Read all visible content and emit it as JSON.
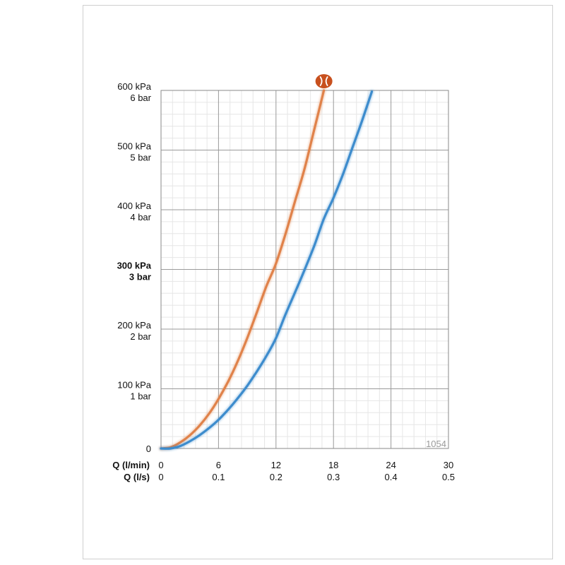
{
  "chart_data": {
    "type": "line",
    "code_label": "1054",
    "x_rows": [
      {
        "label": "Q (l/min)",
        "ticks": [
          "0",
          "6",
          "12",
          "18",
          "24",
          "30"
        ]
      },
      {
        "label": "Q (l/s)",
        "ticks": [
          "0",
          "0.1",
          "0.2",
          "0.3",
          "0.4",
          "0.5"
        ]
      }
    ],
    "y_ticks": [
      {
        "value": 0,
        "kpa": "0",
        "bar": "",
        "bold": false
      },
      {
        "value": 100,
        "kpa": "100 kPa",
        "bar": "1 bar",
        "bold": false
      },
      {
        "value": 200,
        "kpa": "200 kPa",
        "bar": "2 bar",
        "bold": false
      },
      {
        "value": 300,
        "kpa": "300 kPa",
        "bar": "3 bar",
        "bold": true
      },
      {
        "value": 400,
        "kpa": "400 kPa",
        "bar": "4 bar",
        "bold": false
      },
      {
        "value": 500,
        "kpa": "500 kPa",
        "bar": "5 bar",
        "bold": false
      },
      {
        "value": 600,
        "kpa": "600 kPa",
        "bar": "6 bar",
        "bold": false
      }
    ],
    "xlim": [
      0,
      30
    ],
    "ylim": [
      0,
      600
    ],
    "grid": true,
    "series": [
      {
        "color": "#e0824a",
        "marker_icon": "flow-restrictor-icon",
        "marker_color": "#c8501e",
        "x": [
          0,
          1,
          2,
          3,
          4,
          5,
          6,
          7,
          8,
          9,
          10,
          11,
          12,
          13,
          14,
          15,
          16,
          17
        ],
        "y": [
          0,
          2,
          10,
          22,
          38,
          58,
          83,
          112,
          146,
          185,
          228,
          272,
          310,
          360,
          415,
          470,
          535,
          600
        ]
      },
      {
        "color": "#3d8ccd",
        "x": [
          0,
          1,
          2,
          3,
          4,
          5,
          6,
          7,
          8,
          9,
          10,
          11,
          12,
          13,
          14,
          15,
          16,
          17,
          18,
          19,
          20,
          21,
          22
        ],
        "y": [
          0,
          0,
          4,
          12,
          22,
          34,
          48,
          65,
          84,
          105,
          129,
          155,
          185,
          225,
          262,
          300,
          340,
          385,
          420,
          460,
          505,
          550,
          598
        ]
      }
    ]
  }
}
